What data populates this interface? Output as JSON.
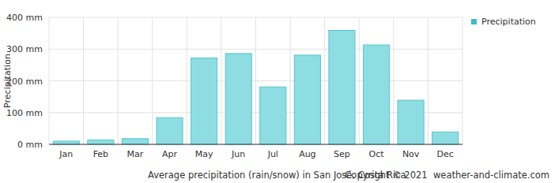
{
  "chart_data": {
    "type": "bar",
    "title": "Average precipitation (rain/snow) in San José, Costa Rica",
    "annotations": [
      "Copyright © 2021  weather-and-climate.com"
    ],
    "y_label": "Precipitation",
    "categories": [
      "Jan",
      "Feb",
      "Mar",
      "Apr",
      "May",
      "Jun",
      "Jul",
      "Aug",
      "Sep",
      "Oct",
      "Nov",
      "Dec"
    ],
    "series": [
      {
        "name": "Precipitation",
        "color": "#8ddde2",
        "values": [
          10,
          14,
          18,
          84,
          272,
          286,
          181,
          281,
          359,
          313,
          139,
          39
        ]
      }
    ],
    "ylim": [
      0,
      400
    ],
    "yticks": [
      {
        "value": 0,
        "label": "0 mm"
      },
      {
        "value": 100,
        "label": "100 mm"
      },
      {
        "value": 200,
        "label": "200 mm"
      },
      {
        "value": 300,
        "label": "300 mm"
      },
      {
        "value": 400,
        "label": "400 mm"
      }
    ],
    "grid": true,
    "legend": "right"
  }
}
